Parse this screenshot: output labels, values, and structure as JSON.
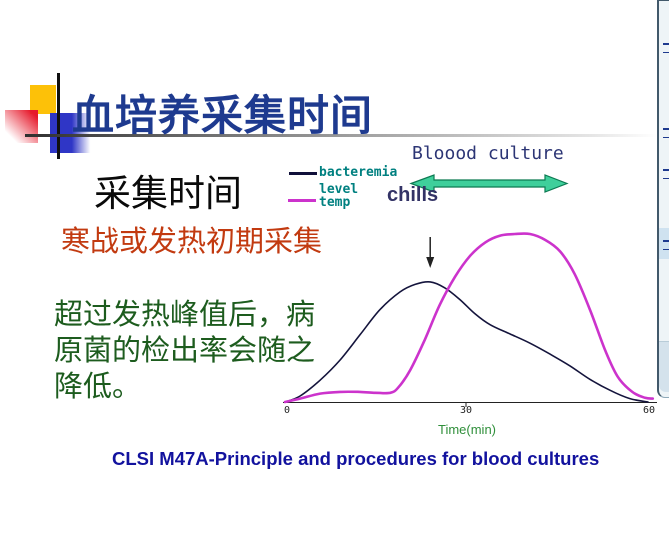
{
  "slide": {
    "title": "血培养采集时间",
    "subtitle": "采集时间",
    "note_red": "寒战或发热初期采集",
    "note_green_lines": [
      "超过发热峰值后，病",
      "原菌的检出率会随之",
      "降低。"
    ],
    "citation": "CLSI M47A-Principle and procedures for blood cultures"
  },
  "legend": {
    "series1_line1": "bacteremia",
    "series1_line2": "level",
    "series2": "temp"
  },
  "annotations": {
    "blood_culture": "Bloood culture",
    "chills": "chills"
  },
  "chart_data": {
    "type": "line",
    "title": "",
    "xlabel": "Time(min)",
    "ylabel": "",
    "xlim": [
      0,
      60
    ],
    "ylim": [
      0,
      100
    ],
    "x_ticks": [
      "0",
      "30",
      "60"
    ],
    "grid": false,
    "legend_position": "top-left",
    "peak_arrow_t": 24,
    "series": [
      {
        "name": "bacteremia level",
        "color": "#14143c",
        "width": 1.6,
        "points": [
          [
            0,
            0
          ],
          [
            2.5,
            3.6
          ],
          [
            5.8,
            13
          ],
          [
            9.1,
            25
          ],
          [
            12.4,
            40
          ],
          [
            15.7,
            55
          ],
          [
            19,
            65.5
          ],
          [
            21.5,
            70
          ],
          [
            24,
            71.5
          ],
          [
            26.4,
            68
          ],
          [
            28.9,
            61
          ],
          [
            31.4,
            52.5
          ],
          [
            33.9,
            46
          ],
          [
            37.2,
            40.5
          ],
          [
            40.5,
            35
          ],
          [
            43.8,
            28.5
          ],
          [
            47.1,
            21.5
          ],
          [
            50.4,
            13.5
          ],
          [
            53.7,
            7
          ],
          [
            57,
            2
          ],
          [
            60,
            0
          ]
        ]
      },
      {
        "name": "temp",
        "color": "#cc33cc",
        "width": 2.6,
        "points": [
          [
            0,
            0
          ],
          [
            2.5,
            2
          ],
          [
            5.8,
            5
          ],
          [
            9.1,
            6
          ],
          [
            12.4,
            6
          ],
          [
            14.9,
            5.5
          ],
          [
            17.4,
            5.5
          ],
          [
            18.7,
            8.5
          ],
          [
            20.7,
            19
          ],
          [
            23.1,
            37
          ],
          [
            25.6,
            58
          ],
          [
            28.1,
            74.5
          ],
          [
            30.6,
            87
          ],
          [
            33.1,
            95
          ],
          [
            35.5,
            99
          ],
          [
            38,
            100
          ],
          [
            40.5,
            100
          ],
          [
            43,
            96.5
          ],
          [
            45.5,
            89.5
          ],
          [
            47.9,
            76
          ],
          [
            50.4,
            55
          ],
          [
            52.9,
            31
          ],
          [
            55,
            15
          ],
          [
            57.4,
            6
          ],
          [
            59.5,
            2.5
          ],
          [
            60.8,
            2
          ]
        ]
      }
    ]
  },
  "colors": {
    "title_blue": "#1e3a8f",
    "citation_blue": "#12129e",
    "note_red": "#c23a10",
    "note_green": "#1d5c1e",
    "legend_teal": "#008080",
    "temp_magenta": "#cc33cc",
    "bacteremia_navy": "#14143c",
    "arrow_green_fill": "#3fcf9b",
    "arrow_green_stroke": "#0c7a52",
    "deco_yellow": "#fdc108",
    "deco_blue": "#2f36c6",
    "deco_red": "#e6192b",
    "xlabel_green": "#2f8f3a"
  }
}
